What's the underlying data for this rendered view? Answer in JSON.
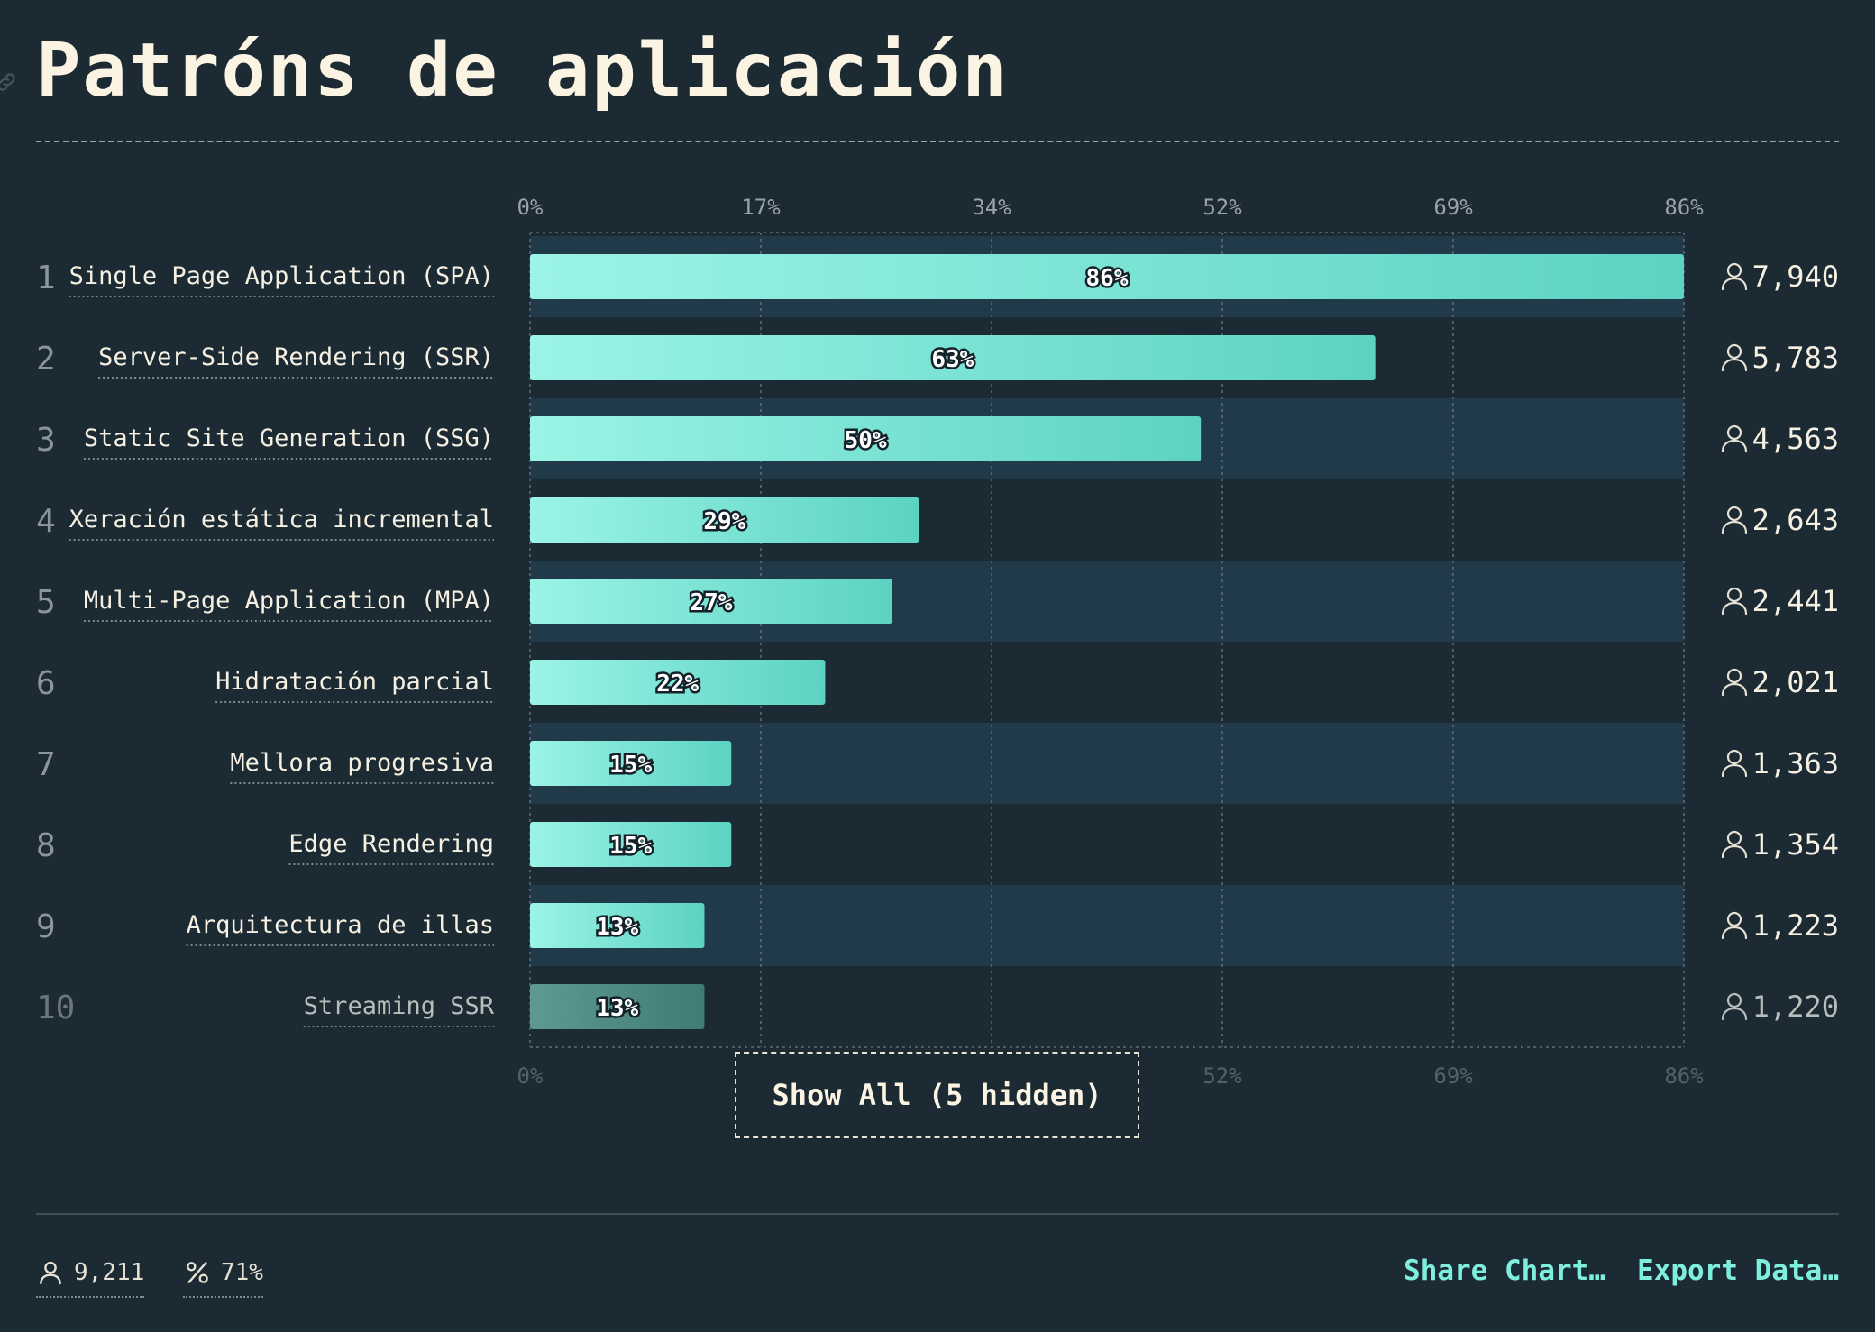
{
  "title": "Patróns de aplicación",
  "show_all_label": "Show All (5 hidden)",
  "footer": {
    "respondents": "9,211",
    "percent": "71%",
    "share_label": "Share Chart…",
    "export_label": "Export Data…"
  },
  "colors": {
    "background": "#1b2a33",
    "bar_start": "#9bf4e6",
    "bar_end": "#5cd3c2",
    "band": "#203a4a",
    "text": "#f5f0e1",
    "accent": "#7fefdd"
  },
  "icons": {
    "user": "user-icon",
    "percent": "percent-icon",
    "link": "link-icon"
  },
  "chart_data": {
    "type": "bar",
    "orientation": "horizontal",
    "title": "Patróns de aplicación",
    "x_ticks": [
      "0%",
      "17%",
      "34%",
      "52%",
      "69%",
      "86%"
    ],
    "xlim": [
      0,
      86
    ],
    "grid": true,
    "categories": [
      "Single Page Application (SPA)",
      "Server-Side Rendering (SSR)",
      "Static Site Generation (SSG)",
      "Xeración estática incremental",
      "Multi-Page Application (MPA)",
      "Hidratación parcial",
      "Mellora progresiva",
      "Edge Rendering",
      "Arquitectura de illas",
      "Streaming SSR"
    ],
    "ranks": [
      "1",
      "2",
      "3",
      "4",
      "5",
      "6",
      "7",
      "8",
      "9",
      "10"
    ],
    "values": [
      86,
      63,
      50,
      29,
      27,
      22,
      15,
      15,
      13,
      13
    ],
    "value_labels": [
      "86%",
      "63%",
      "50%",
      "29%",
      "27%",
      "22%",
      "15%",
      "15%",
      "13%",
      "13%"
    ],
    "counts": [
      "7,940",
      "5,783",
      "4,563",
      "2,643",
      "2,441",
      "2,021",
      "1,363",
      "1,354",
      "1,223",
      "1,220"
    ]
  }
}
